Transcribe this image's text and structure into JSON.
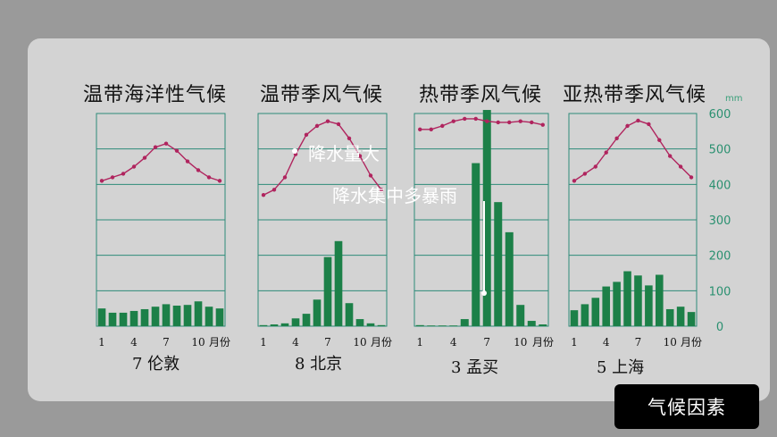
{
  "titles": [
    "温带海洋性气候",
    "温带季风气候",
    "热带季风气候",
    "亚热带季风气候"
  ],
  "unit": "mm",
  "x_axis_label": "月份",
  "annotations": {
    "rain_large": "降水量大",
    "rain_concentrated": "降水集中多暴雨"
  },
  "button": {
    "label": "气候因素"
  },
  "colors": {
    "bar": "#1c8048",
    "line": "#b0245e",
    "grid": "#2e8b78",
    "axis_text": "#2a9070"
  },
  "chart_data": [
    {
      "type": "bar+line",
      "city": "7  伦敦",
      "x": [
        1,
        2,
        3,
        4,
        5,
        6,
        7,
        8,
        9,
        10,
        11,
        12
      ],
      "xticks": [
        "1",
        "4",
        "7",
        "10"
      ],
      "precipitation_mm": [
        50,
        38,
        38,
        43,
        48,
        55,
        62,
        58,
        60,
        70,
        55,
        50
      ],
      "temperature_line_level": [
        410,
        420,
        430,
        450,
        475,
        505,
        515,
        495,
        465,
        440,
        420,
        410
      ]
    },
    {
      "type": "bar+line",
      "city": "8  北京",
      "x": [
        1,
        2,
        3,
        4,
        5,
        6,
        7,
        8,
        9,
        10,
        11,
        12
      ],
      "xticks": [
        "1",
        "4",
        "7",
        "10"
      ],
      "precipitation_mm": [
        3,
        5,
        8,
        22,
        35,
        75,
        195,
        240,
        65,
        20,
        8,
        3
      ],
      "temperature_line_level": [
        370,
        385,
        420,
        485,
        540,
        565,
        578,
        570,
        530,
        480,
        425,
        385
      ]
    },
    {
      "type": "bar+line",
      "city": "3  孟买",
      "x": [
        1,
        2,
        3,
        4,
        5,
        6,
        7,
        8,
        9,
        10,
        11,
        12
      ],
      "xticks": [
        "1",
        "4",
        "7",
        "10"
      ],
      "precipitation_mm": [
        3,
        2,
        2,
        2,
        20,
        460,
        610,
        350,
        265,
        60,
        15,
        5
      ],
      "temperature_line_level": [
        555,
        555,
        565,
        578,
        585,
        585,
        578,
        575,
        575,
        578,
        575,
        568
      ]
    },
    {
      "type": "bar+line",
      "city": "5  上海",
      "x": [
        1,
        2,
        3,
        4,
        5,
        6,
        7,
        8,
        9,
        10,
        11,
        12
      ],
      "xticks": [
        "1",
        "4",
        "7",
        "10"
      ],
      "precipitation_mm": [
        45,
        62,
        80,
        112,
        125,
        155,
        143,
        115,
        145,
        48,
        55,
        40
      ],
      "temperature_line_level": [
        410,
        430,
        450,
        490,
        530,
        565,
        580,
        570,
        525,
        480,
        450,
        420
      ]
    }
  ],
  "y_axis": {
    "ticks": [
      "0",
      "100",
      "200",
      "300",
      "400",
      "500",
      "600"
    ],
    "ylim": [
      0,
      600
    ]
  }
}
